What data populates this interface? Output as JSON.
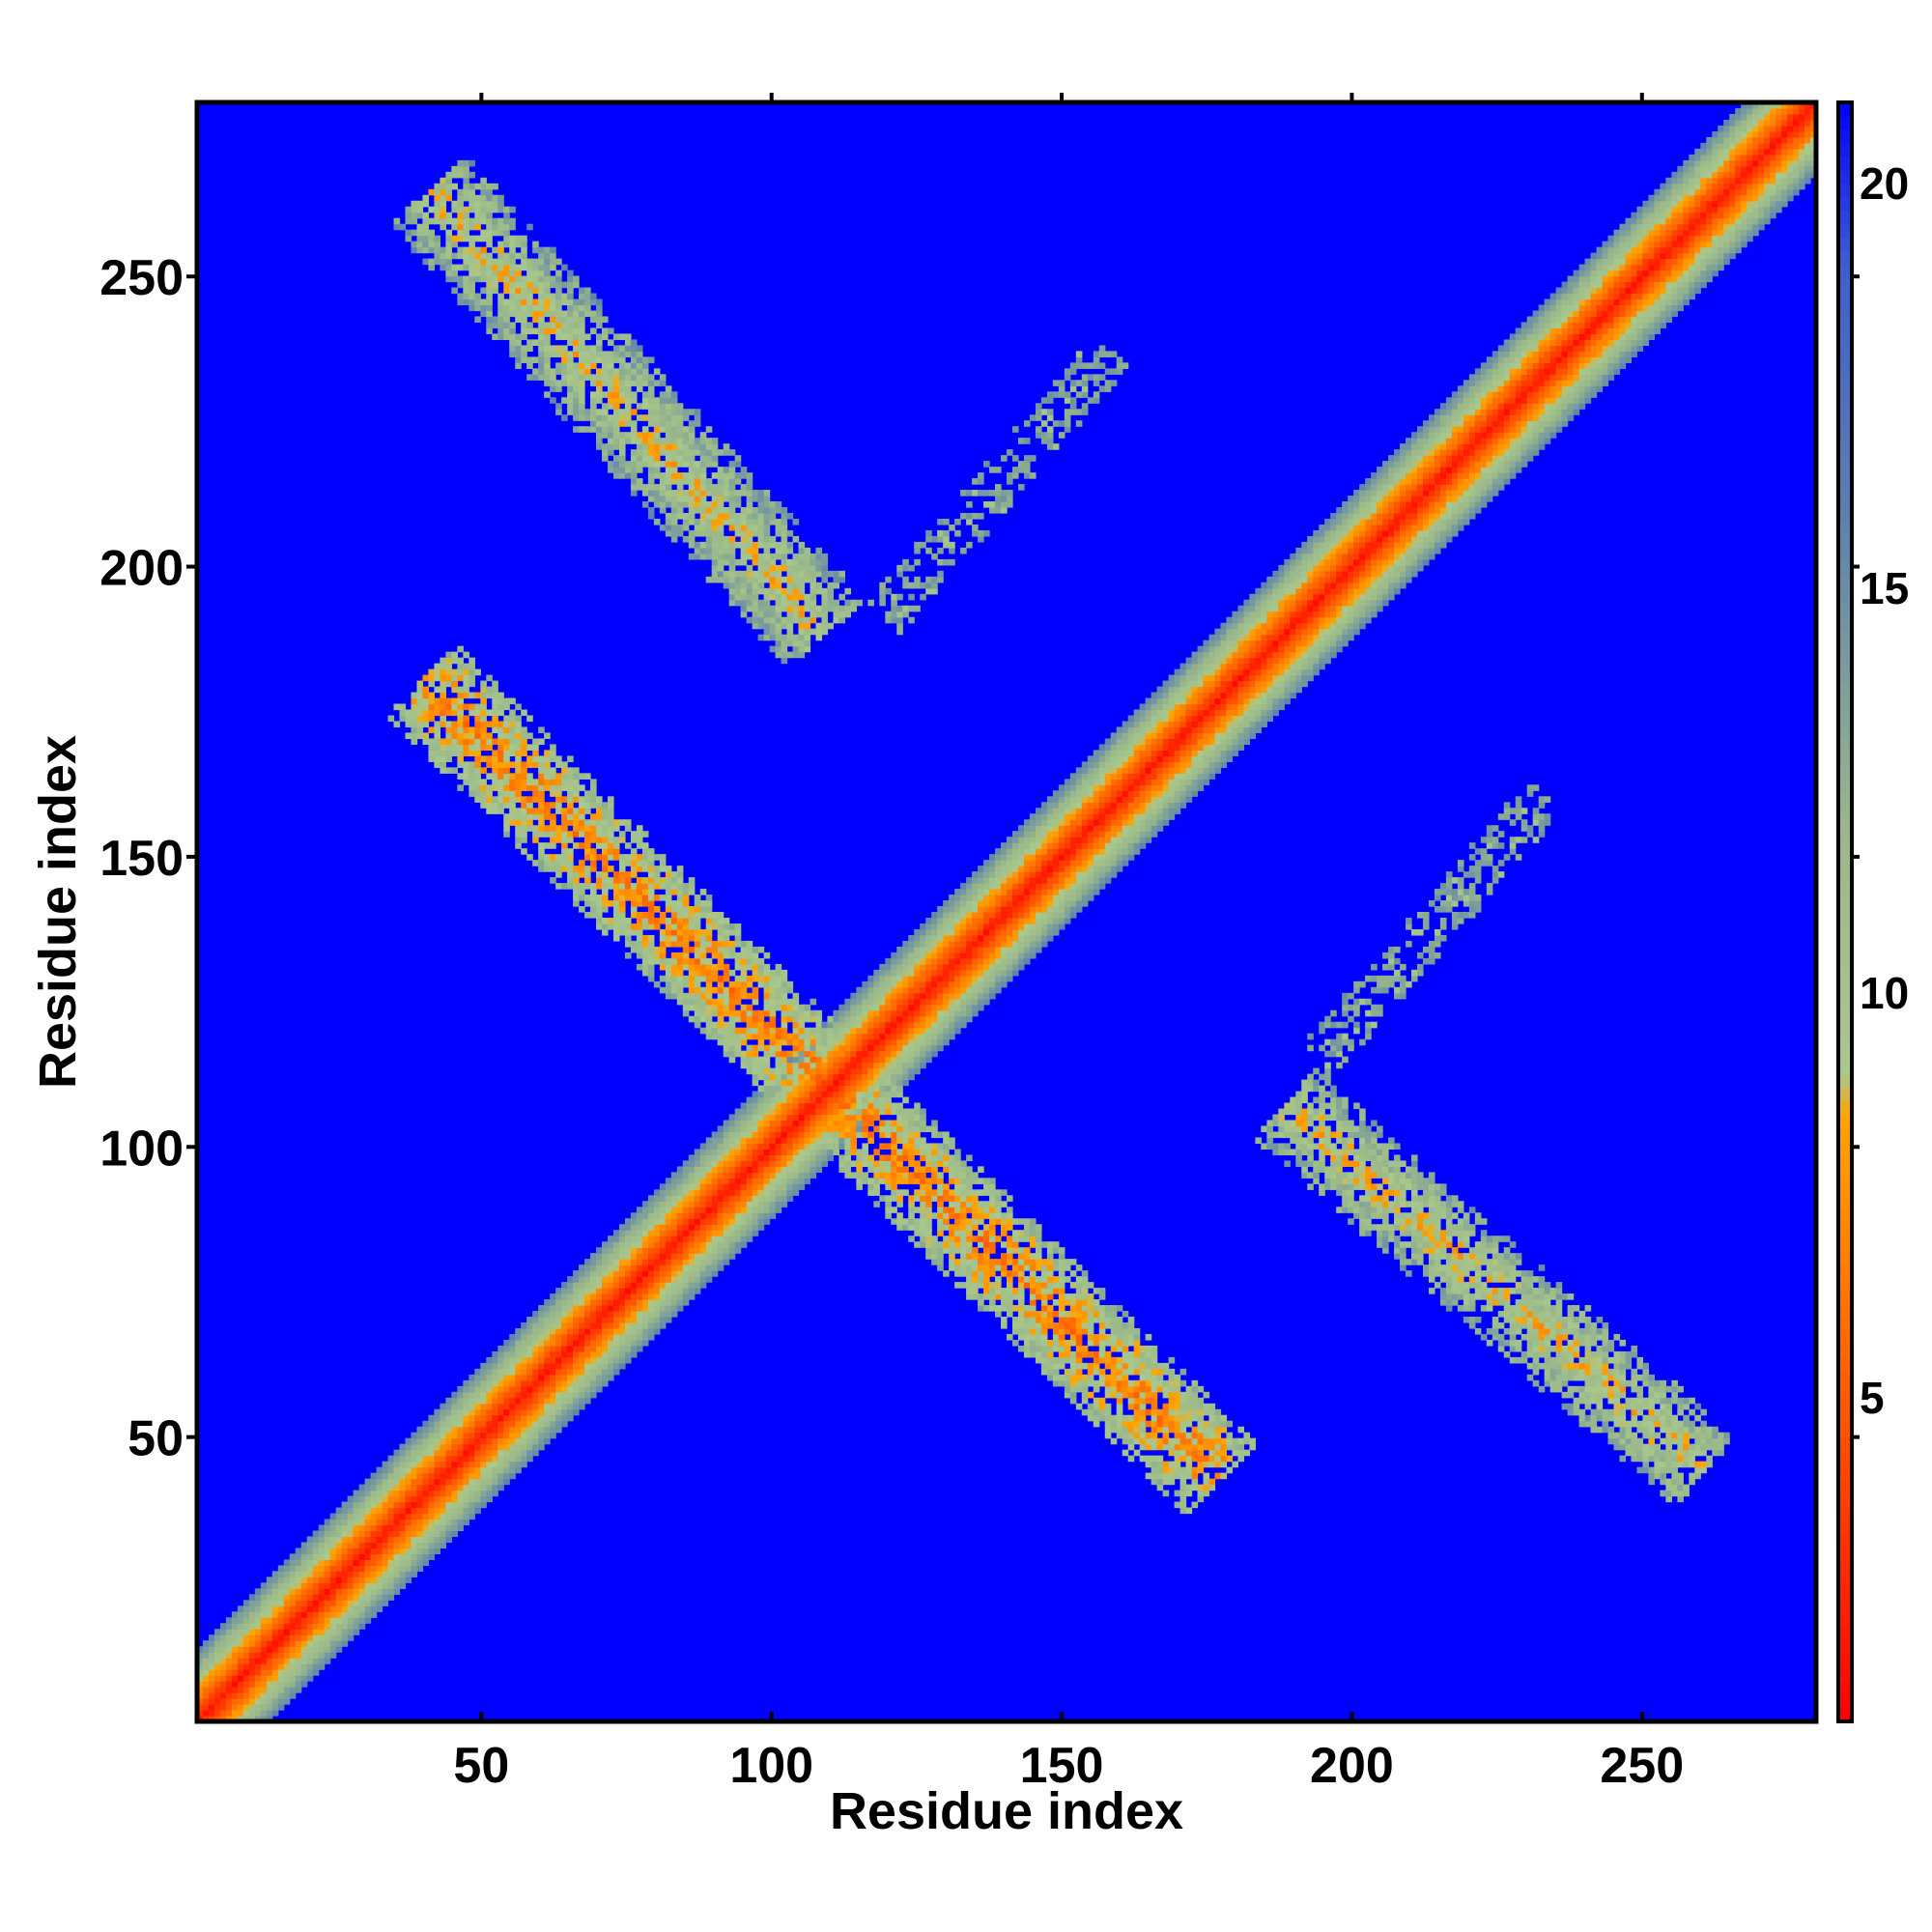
{
  "chart_data": {
    "type": "heatmap",
    "title": "",
    "xlabel": "Residue index",
    "ylabel": "Residue index",
    "xlim": [
      1,
      280
    ],
    "ylim": [
      1,
      280
    ],
    "x_ticks": [
      "50",
      "100",
      "150",
      "200",
      "250"
    ],
    "y_ticks": [
      "50",
      "100",
      "150",
      "200",
      "250"
    ],
    "colorbar": {
      "range": [
        1,
        21
      ],
      "ticks": [
        "5",
        "10",
        "15",
        "20"
      ],
      "stops": [
        {
          "value": 1,
          "color": "#ff0000"
        },
        {
          "value": 5,
          "color": "#ff5a00"
        },
        {
          "value": 8.5,
          "color": "#ffa500"
        },
        {
          "value": 9,
          "color": "#a9c88c"
        },
        {
          "value": 12,
          "color": "#9ab88a"
        },
        {
          "value": 16,
          "color": "#5a7fb0"
        },
        {
          "value": 19,
          "color": "#3d5fd0"
        },
        {
          "value": 21,
          "color": "#0000ff"
        }
      ]
    },
    "background_value": 21,
    "features": [
      {
        "kind": "diagonal",
        "from": [
          1,
          1
        ],
        "to": [
          280,
          280
        ],
        "core_value": 2,
        "width": 9
      },
      {
        "kind": "anti-diagonal band",
        "from": [
          42,
          178
        ],
        "to": [
          175,
          45
        ],
        "core_value": 7,
        "width": 9
      },
      {
        "kind": "anti-diagonal band",
        "from": [
          42,
          264
        ],
        "to": [
          108,
          190
        ],
        "core_value": 9,
        "width": 9
      },
      {
        "kind": "anti-diagonal band",
        "from": [
          190,
          106
        ],
        "to": [
          260,
          45
        ],
        "core_value": 9,
        "width": 8
      },
      {
        "kind": "sparse contacts",
        "from": [
          120,
          192
        ],
        "to": [
          158,
          237
        ],
        "core_value": 12,
        "width": 4
      },
      {
        "kind": "sparse contacts",
        "from": [
          194,
          114
        ],
        "to": [
          233,
          160
        ],
        "core_value": 12,
        "width": 4
      }
    ]
  }
}
